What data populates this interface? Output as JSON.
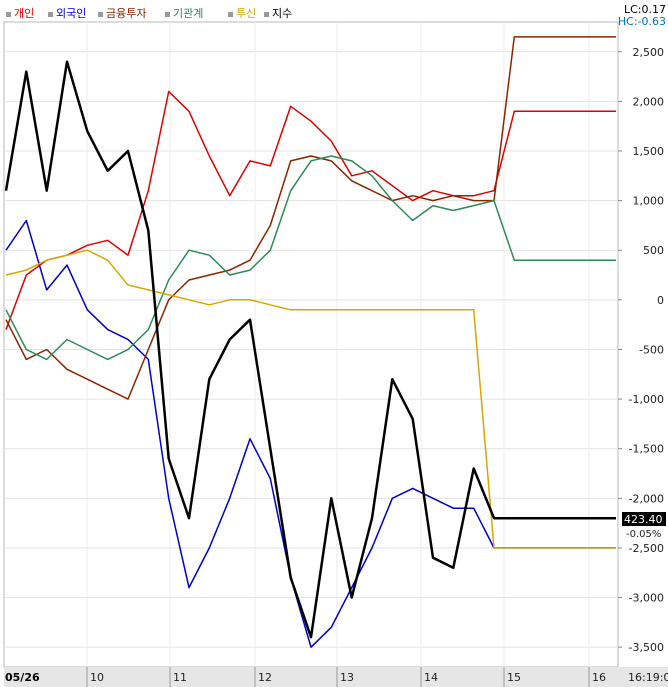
{
  "legend": [
    {
      "label": "개인",
      "color": "#e00000"
    },
    {
      "label": "외국인",
      "color": "#0000cc"
    },
    {
      "label": "금융투자",
      "color": "#8b2500"
    },
    {
      "label": "기관계",
      "color": "#2e8b57"
    },
    {
      "label": "투신",
      "color": "#d4aa00"
    },
    {
      "label": "지수",
      "color": "#000000"
    }
  ],
  "readouts": {
    "lc": "LC:0.17",
    "hc": "HC:-0.63"
  },
  "value_tags": {
    "index": "423.40",
    "pct": "-0.05%"
  },
  "chart_data": {
    "type": "line",
    "x_labels": [
      "05/26",
      "10",
      "11",
      "12",
      "13",
      "14",
      "15",
      "16",
      "16:19:0"
    ],
    "ylim": [
      -3700,
      2800
    ],
    "y_ticks": [
      2500,
      2000,
      1500,
      1000,
      500,
      0,
      -500,
      -1000,
      -1500,
      -2000,
      -2500,
      -3000,
      -3500
    ],
    "y_tick_labels": [
      "2,500",
      "2,000",
      "1,500",
      "1,000",
      "500",
      "0",
      "-500",
      "-1,000",
      "-1,500",
      "-2,000",
      "-2,500",
      "-3,000",
      "-3,500"
    ],
    "grid": true,
    "series": [
      {
        "name": "개인",
        "color": "#e00000",
        "x": [
          0,
          1,
          2,
          3,
          4,
          5,
          6,
          7,
          8,
          9,
          10,
          11,
          12,
          13,
          14,
          15,
          16,
          17,
          18,
          19,
          20,
          21,
          22,
          23,
          24,
          25,
          26,
          27,
          28,
          29,
          30
        ],
        "y": [
          -300,
          250,
          400,
          450,
          550,
          600,
          450,
          1100,
          2100,
          1900,
          1450,
          1050,
          1400,
          1350,
          1950,
          1800,
          1600,
          1250,
          1300,
          1150,
          1000,
          1100,
          1050,
          1050,
          1100,
          1900,
          1900,
          1900,
          1900,
          1900,
          1900
        ]
      },
      {
        "name": "외국인",
        "color": "#0000cc",
        "x": [
          0,
          1,
          2,
          3,
          4,
          5,
          6,
          7,
          8,
          9,
          10,
          11,
          12,
          13,
          14,
          15,
          16,
          17,
          18,
          19,
          20,
          21,
          22,
          23,
          24,
          25,
          26,
          27,
          28,
          29,
          30
        ],
        "y": [
          500,
          800,
          100,
          350,
          -100,
          -300,
          -400,
          -600,
          -2000,
          -2900,
          -2500,
          -2000,
          -1400,
          -1800,
          -2800,
          -3500,
          -3300,
          -2900,
          -2500,
          -2000,
          -1900,
          -2000,
          -2100,
          -2100,
          -2500,
          -2500,
          -2500,
          -2500,
          -2500,
          -2500,
          -2500
        ]
      },
      {
        "name": "금융투자",
        "color": "#8b2500",
        "x": [
          0,
          1,
          2,
          3,
          4,
          5,
          6,
          7,
          8,
          9,
          10,
          11,
          12,
          13,
          14,
          15,
          16,
          17,
          18,
          19,
          20,
          21,
          22,
          23,
          24,
          25,
          26,
          27,
          28,
          29,
          30
        ],
        "y": [
          -200,
          -600,
          -500,
          -700,
          -800,
          -900,
          -1000,
          -500,
          0,
          200,
          250,
          300,
          400,
          750,
          1400,
          1450,
          1400,
          1200,
          1100,
          1000,
          1050,
          1000,
          1050,
          1000,
          1000,
          2650,
          2650,
          2650,
          2650,
          2650,
          2650
        ]
      },
      {
        "name": "기관계",
        "color": "#2e8b57",
        "x": [
          0,
          1,
          2,
          3,
          4,
          5,
          6,
          7,
          8,
          9,
          10,
          11,
          12,
          13,
          14,
          15,
          16,
          17,
          18,
          19,
          20,
          21,
          22,
          23,
          24,
          25,
          26,
          27,
          28,
          29,
          30
        ],
        "y": [
          -100,
          -500,
          -600,
          -400,
          -500,
          -600,
          -500,
          -300,
          200,
          500,
          450,
          250,
          300,
          500,
          1100,
          1400,
          1450,
          1400,
          1250,
          1000,
          800,
          950,
          900,
          950,
          1000,
          400,
          400,
          400,
          400,
          400,
          400
        ]
      },
      {
        "name": "투신",
        "color": "#d4aa00",
        "x": [
          0,
          1,
          2,
          3,
          4,
          5,
          6,
          7,
          8,
          9,
          10,
          11,
          12,
          13,
          14,
          15,
          16,
          17,
          18,
          19,
          20,
          21,
          22,
          23,
          24,
          25,
          26,
          27,
          28,
          29,
          30
        ],
        "y": [
          250,
          300,
          400,
          450,
          500,
          400,
          150,
          100,
          50,
          0,
          -50,
          0,
          0,
          -50,
          -100,
          -100,
          -100,
          -100,
          -100,
          -100,
          -100,
          -100,
          -100,
          -100,
          -2500,
          -2500,
          -2500,
          -2500,
          -2500,
          -2500,
          -2500
        ]
      },
      {
        "name": "지수",
        "color": "#000000",
        "x": [
          0,
          1,
          2,
          3,
          4,
          5,
          6,
          7,
          8,
          9,
          10,
          11,
          12,
          13,
          14,
          15,
          16,
          17,
          18,
          19,
          20,
          21,
          22,
          23,
          24,
          25,
          26,
          27,
          28,
          29,
          30
        ],
        "y": [
          1100,
          2300,
          1100,
          2400,
          1700,
          1300,
          1500,
          700,
          -1600,
          -2200,
          -800,
          -400,
          -200,
          -1500,
          -2800,
          -3400,
          -2000,
          -3000,
          -2200,
          -800,
          -1200,
          -2600,
          -2700,
          -1700,
          -2200,
          -2200,
          -2200,
          -2200,
          -2200,
          -2200,
          -2200
        ]
      }
    ]
  }
}
